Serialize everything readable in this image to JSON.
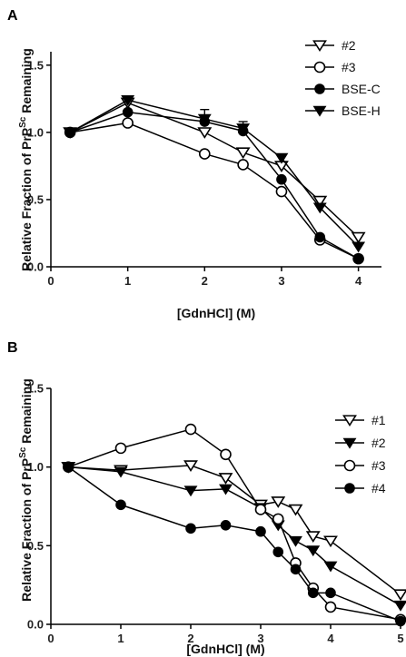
{
  "chart_data": [
    {
      "panel": "A",
      "type": "line",
      "xlabel": "[GdnHCl] (M)",
      "ylabel_main": "Relative Fraction of PrP",
      "ylabel_sup": "Sc",
      "ylabel_tail": " Remaining",
      "xlim": [
        0,
        4.3
      ],
      "ylim": [
        0,
        1.6
      ],
      "xticks": [
        "0",
        "1",
        "2",
        "3",
        "4"
      ],
      "xtick_values": [
        0,
        1,
        2,
        3,
        4
      ],
      "yticks": [
        "0.0",
        "0.5",
        "1.0",
        "1.5"
      ],
      "ytick_values": [
        0,
        0.5,
        1.0,
        1.5
      ],
      "legend_position": "top-right",
      "series": [
        {
          "name": "#2",
          "marker": "triangle-down-open",
          "x": [
            0.25,
            1,
            2,
            2.5,
            3,
            3.5,
            4
          ],
          "y": [
            1.0,
            1.22,
            1.0,
            0.85,
            0.75,
            0.49,
            0.22
          ]
        },
        {
          "name": "#3",
          "marker": "circle-open",
          "x": [
            0.25,
            1,
            2,
            2.5,
            3,
            3.5,
            4
          ],
          "y": [
            1.0,
            1.07,
            0.84,
            0.76,
            0.56,
            0.2,
            0.06
          ]
        },
        {
          "name": "BSE-C",
          "marker": "circle-filled",
          "x": [
            0.25,
            1,
            2,
            2.5,
            3,
            3.5,
            4
          ],
          "y": [
            1.0,
            1.15,
            1.08,
            1.01,
            0.65,
            0.22,
            0.06
          ]
        },
        {
          "name": "BSE-H",
          "marker": "triangle-down-filled",
          "x": [
            0.25,
            1,
            2,
            2.5,
            3,
            3.5,
            4
          ],
          "y": [
            1.0,
            1.24,
            1.1,
            1.03,
            0.81,
            0.44,
            0.15
          ]
        }
      ],
      "error_bars": [
        {
          "x": 2,
          "y": 1.1,
          "err": 0.07
        },
        {
          "x": 2.5,
          "y": 1.03,
          "err": 0.05
        }
      ]
    },
    {
      "panel": "B",
      "type": "line",
      "xlabel": "[GdnHCl] (M)",
      "ylabel_main": "Relative Fraction of PrP",
      "ylabel_sup": "Sc",
      "ylabel_tail": " Remaining",
      "xlim": [
        0,
        5
      ],
      "ylim": [
        0,
        1.5
      ],
      "xticks": [
        "0",
        "1",
        "2",
        "3",
        "4",
        "5"
      ],
      "xtick_values": [
        0,
        1,
        2,
        3,
        4,
        5
      ],
      "yticks": [
        "0.0",
        "0.5",
        "1.0",
        "1.5"
      ],
      "ytick_values": [
        0,
        0.5,
        1.0,
        1.5
      ],
      "legend_position": "top-right",
      "series": [
        {
          "name": "#1",
          "marker": "triangle-down-open",
          "x": [
            0.25,
            1,
            2,
            2.5,
            3,
            3.25,
            3.5,
            3.75,
            4,
            5
          ],
          "y": [
            1.0,
            0.98,
            1.01,
            0.93,
            0.76,
            0.78,
            0.73,
            0.56,
            0.53,
            0.19
          ]
        },
        {
          "name": "#2",
          "marker": "triangle-down-filled",
          "x": [
            0.25,
            1,
            2,
            2.5,
            3,
            3.25,
            3.5,
            3.75,
            4,
            5
          ],
          "y": [
            1.0,
            0.97,
            0.85,
            0.86,
            0.74,
            0.63,
            0.53,
            0.47,
            0.37,
            0.12
          ]
        },
        {
          "name": "#3",
          "marker": "circle-open",
          "x": [
            0.25,
            1,
            2,
            2.5,
            3,
            3.25,
            3.5,
            3.75,
            4,
            5
          ],
          "y": [
            1.0,
            1.12,
            1.24,
            1.08,
            0.73,
            0.67,
            0.39,
            0.23,
            0.11,
            0.03
          ]
        },
        {
          "name": "#4",
          "marker": "circle-filled",
          "x": [
            0.25,
            1,
            2,
            2.5,
            3,
            3.25,
            3.5,
            3.75,
            4,
            5
          ],
          "y": [
            1.0,
            0.76,
            0.61,
            0.63,
            0.59,
            0.46,
            0.35,
            0.2,
            0.2,
            0.02
          ]
        }
      ]
    }
  ]
}
